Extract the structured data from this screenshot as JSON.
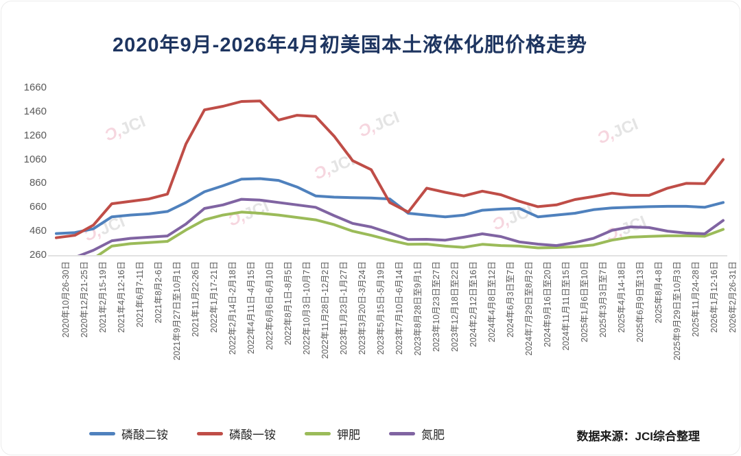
{
  "card": {
    "title": "2020年9月-2026年4月初美国本土液体化肥价格走势",
    "source_label": "数据来源：JCI综合整理"
  },
  "watermark": {
    "mark": "Ɔ,",
    "text": "JCI"
  },
  "chart_data": {
    "type": "line",
    "title": "2020年9月-2026年4月初美国本土液体化肥价格走势",
    "xlabel": "",
    "ylabel": "",
    "ylim": [
      260,
      1660
    ],
    "yticks": [
      260,
      460,
      660,
      860,
      1060,
      1260,
      1460,
      1660
    ],
    "grid": false,
    "legend_position": "bottom",
    "source": "数据来源：JCI综合整理",
    "categories": [
      "2020年10月26-30日",
      "2020年12月21-25日",
      "2021年2月15-19日",
      "2021年4月12-16日",
      "2021年6月7-11日",
      "2021年8月2-6日",
      "2021年9月27日至10月1日",
      "2021年11月22-26日",
      "2022年1月17-21日",
      "2022年2月14日-2月18日",
      "2022年4月11日-4月15日",
      "2022年6月6日-6月10日",
      "2022年8月1日-8月5日",
      "2022年10月3日-10月7日",
      "2022年11月28日-12月2日",
      "2023年1月23日-1月27日",
      "2023年3月20日-3月24日",
      "2023年5月15日-5月19日",
      "2023年7月10日-6月14日",
      "2023年8月28日至9月1日",
      "2023年10月23日至27日",
      "2023年12月18日至22日",
      "2024年2月12日至16日",
      "2024年4月8日至12日",
      "2024年6月3日至7日",
      "2024年7月29日至8月2日",
      "2024年9月16日至20日",
      "2024年11月11日至15日",
      "2025年1月6日至10日",
      "2025年3月3日至7日",
      "2025年4月14-18日",
      "2025年6月9日至13日",
      "2025年8月4-8日",
      "2025年9月29日至10月3日",
      "2025年11月24-28日",
      "2026年1月12-16日",
      "2026年2月26-31日"
    ],
    "series": [
      {
        "key": "dap",
        "name": "磷酸二铵",
        "color": "#4f81bd",
        "values": [
          440,
          448,
          480,
          580,
          595,
          605,
          625,
          700,
          790,
          840,
          895,
          900,
          885,
          830,
          755,
          745,
          740,
          738,
          730,
          610,
          594,
          580,
          594,
          635,
          645,
          650,
          580,
          595,
          610,
          640,
          655,
          660,
          665,
          668,
          668,
          660,
          700
        ]
      },
      {
        "key": "map",
        "name": "磷酸一铵",
        "color": "#bf4d47",
        "values": [
          405,
          425,
          510,
          690,
          710,
          730,
          770,
          1190,
          1475,
          1505,
          1545,
          1550,
          1390,
          1430,
          1420,
          1255,
          1050,
          975,
          700,
          620,
          820,
          785,
          755,
          795,
          765,
          710,
          665,
          680,
          725,
          750,
          778,
          760,
          760,
          820,
          860,
          858,
          1060
        ]
      },
      {
        "key": "potash",
        "name": "钾肥",
        "color": "#9bbb59",
        "values": [
          null,
          null,
          230,
          335,
          355,
          365,
          375,
          470,
          555,
          595,
          620,
          610,
          595,
          575,
          555,
          515,
          460,
          425,
          385,
          350,
          352,
          335,
          325,
          350,
          340,
          335,
          320,
          323,
          330,
          345,
          385,
          410,
          416,
          421,
          421,
          418,
          475
        ]
      },
      {
        "key": "nitrogen",
        "name": "氮肥",
        "color": "#8064a2",
        "values": [
          null,
          240,
          300,
          380,
          400,
          410,
          420,
          520,
          650,
          680,
          727,
          720,
          700,
          680,
          660,
          590,
          525,
          495,
          445,
          390,
          392,
          385,
          410,
          438,
          415,
          370,
          352,
          340,
          365,
          400,
          467,
          496,
          490,
          460,
          444,
          438,
          550
        ]
      }
    ]
  }
}
